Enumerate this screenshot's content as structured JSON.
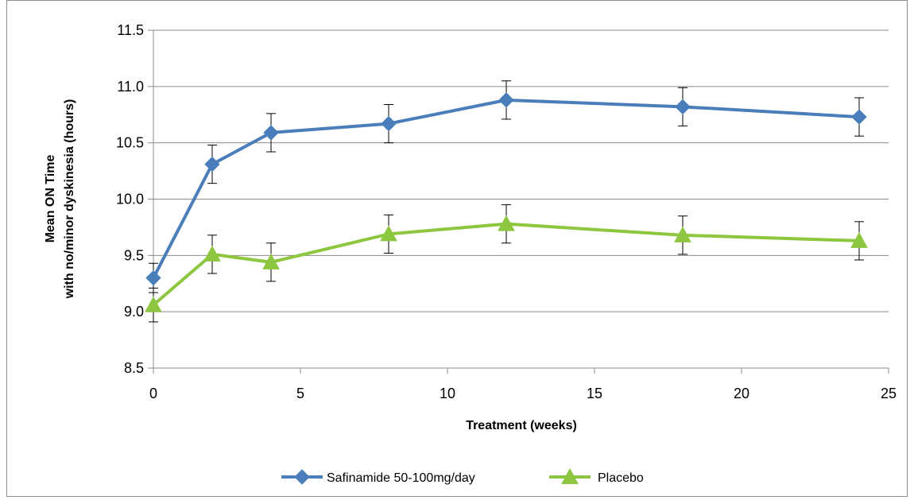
{
  "chart_data": {
    "type": "line",
    "title": "",
    "xlabel": "Treatment (weeks)",
    "ylabel_line1": "Mean ON Time",
    "ylabel_line2": "with no/minor dyskinesia (hours)",
    "xlim": [
      0,
      25
    ],
    "ylim": [
      8.5,
      11.5
    ],
    "xticks": [
      0,
      5,
      10,
      15,
      20,
      25
    ],
    "xtick_labels": [
      "0",
      "5",
      "10",
      "15",
      "20",
      "25"
    ],
    "yticks": [
      8.5,
      9.0,
      9.5,
      10.0,
      10.5,
      11.0,
      11.5
    ],
    "ytick_labels": [
      "8.5",
      "9.0",
      "9.5",
      "10.0",
      "10.5",
      "11.0",
      "11.5"
    ],
    "grid": "horizontal",
    "legend_position": "bottom",
    "series": [
      {
        "name": "Safinamide 50-100mg/day",
        "color": "#4a7ebb",
        "marker": "diamond",
        "x": [
          0,
          2,
          4,
          8,
          12,
          18,
          24
        ],
        "y": [
          9.3,
          10.31,
          10.59,
          10.67,
          10.88,
          10.82,
          10.73
        ],
        "err": [
          0.13,
          0.17,
          0.17,
          0.17,
          0.17,
          0.17,
          0.17
        ]
      },
      {
        "name": "Placebo",
        "color": "#8dc63f",
        "marker": "triangle",
        "x": [
          0,
          2,
          4,
          8,
          12,
          18,
          24
        ],
        "y": [
          9.06,
          9.51,
          9.44,
          9.69,
          9.78,
          9.68,
          9.63
        ],
        "err": [
          0.15,
          0.17,
          0.17,
          0.17,
          0.17,
          0.17,
          0.17
        ]
      }
    ]
  }
}
